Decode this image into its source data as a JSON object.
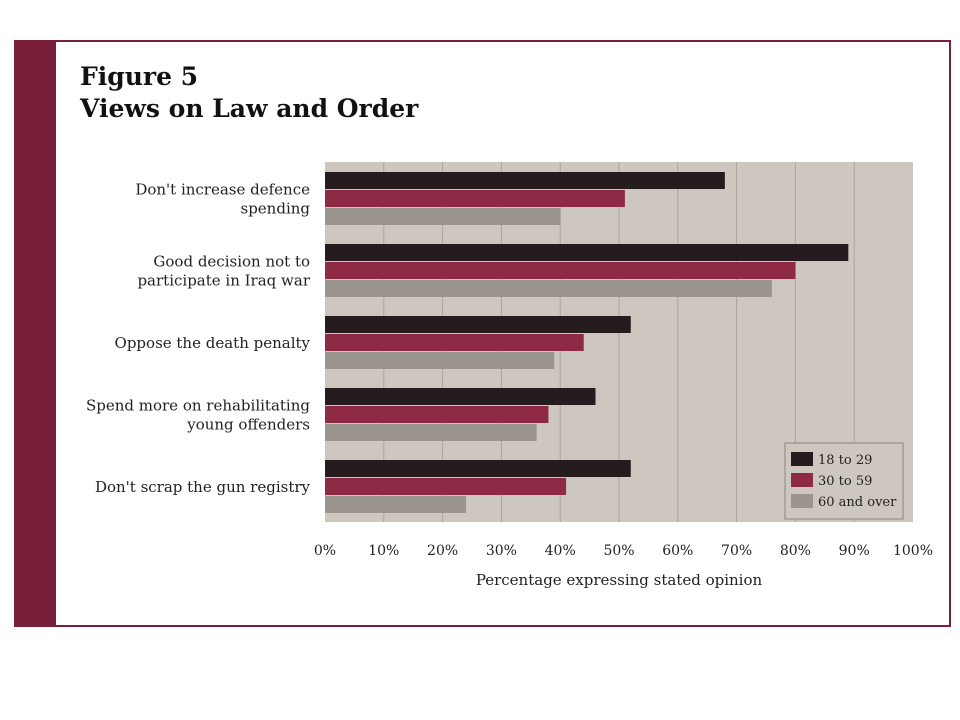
{
  "figure_label": "Figure 5",
  "figure_title": "Views on Law and Order",
  "colors": {
    "frame": "#7a1f3a",
    "plot_bg": "#cdc7bf",
    "series_18_29": "#241c1e",
    "series_30_59": "#8e2a45",
    "series_60_over": "#9c958e"
  },
  "chart_data": {
    "type": "bar",
    "orientation": "horizontal",
    "categories": [
      [
        "Don't increase defence",
        "spending"
      ],
      [
        "Good decision not to",
        "participate in Iraq war"
      ],
      [
        "Oppose the death penalty"
      ],
      [
        "Spend more on rehabilitating",
        "young offenders"
      ],
      [
        "Don't scrap the gun registry"
      ]
    ],
    "series": [
      {
        "name": "18 to 29",
        "values": [
          68,
          89,
          52,
          46,
          52
        ]
      },
      {
        "name": "30 to 59",
        "values": [
          51,
          80,
          44,
          38,
          41
        ]
      },
      {
        "name": "60 and over",
        "values": [
          40,
          76,
          39,
          36,
          24
        ]
      }
    ],
    "xlabel": "Percentage expressing stated opinion",
    "ticks": [
      "0%",
      "10%",
      "20%",
      "30%",
      "40%",
      "50%",
      "60%",
      "70%",
      "80%",
      "90%",
      "100%"
    ],
    "xlim": [
      0,
      100
    ],
    "grid": true,
    "legend_position": "bottom-right"
  }
}
